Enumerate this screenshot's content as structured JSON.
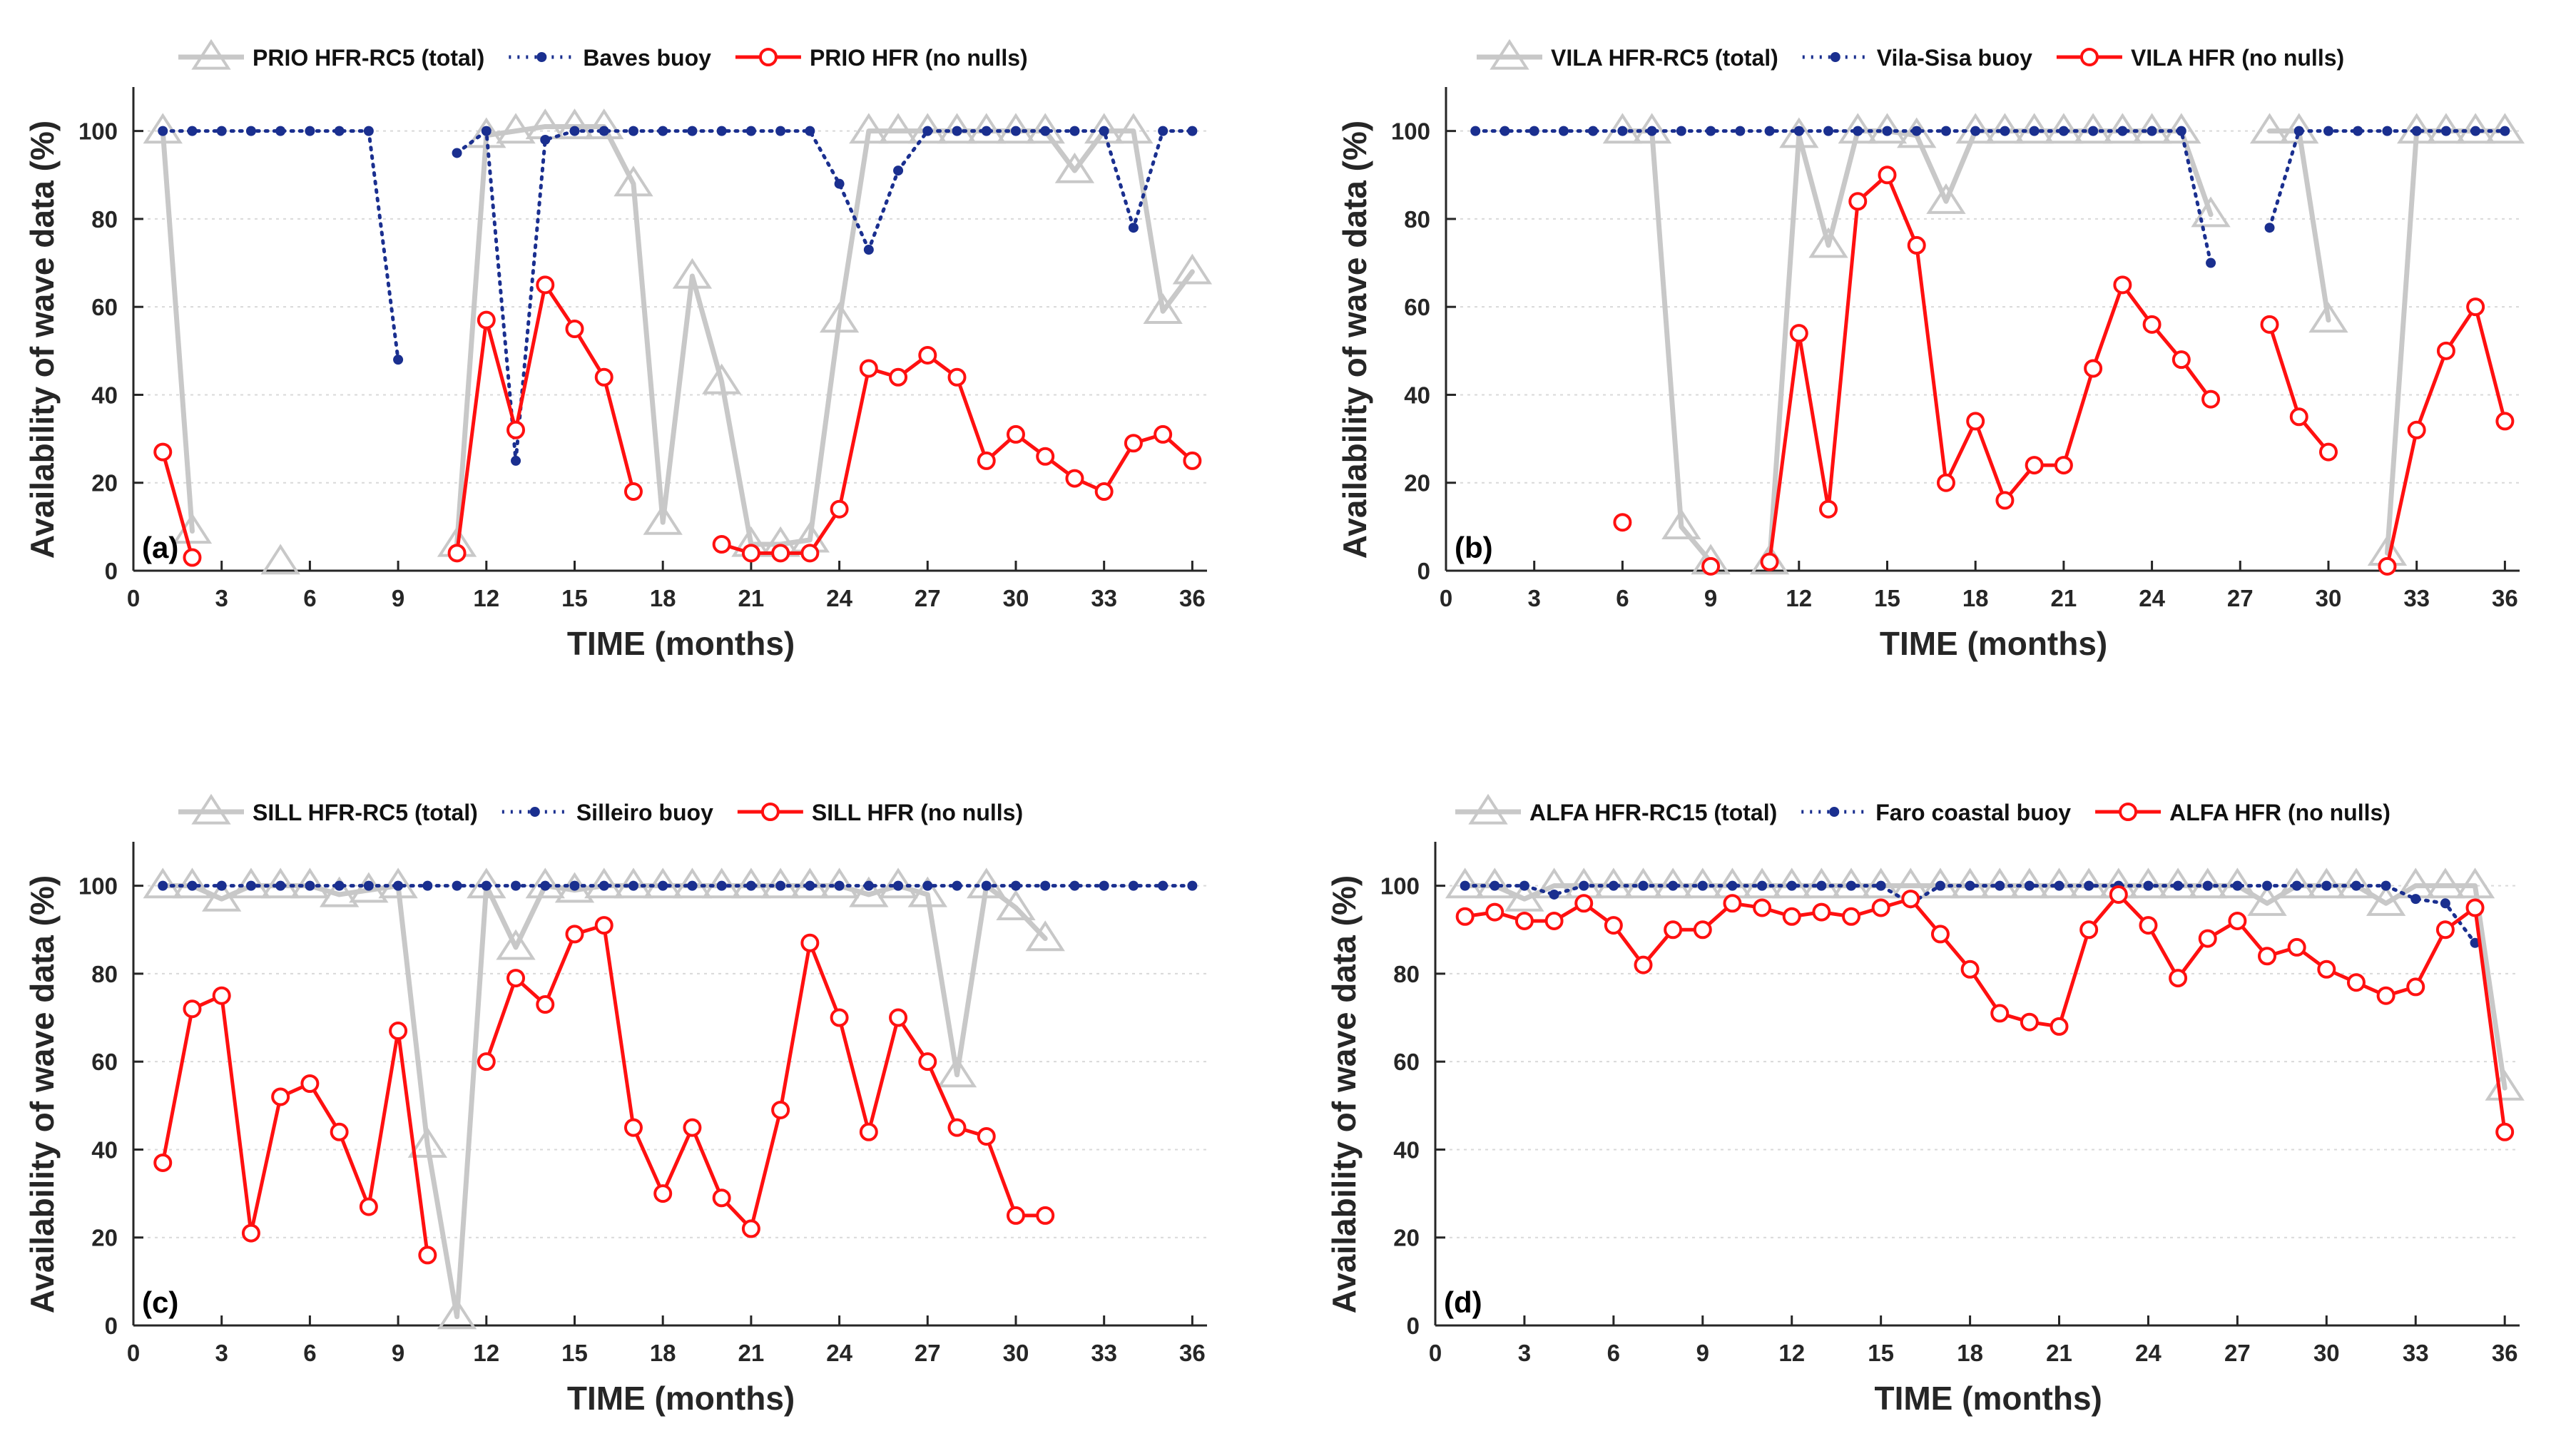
{
  "colors": {
    "hfr_total": "#c8c8c8",
    "buoy": "#1a2f8f",
    "hfr_nonull": "#ff1010",
    "grid": "#d9d9d9",
    "axis": "#262626"
  },
  "chart_data": [
    {
      "type": "line",
      "panel_tag": "(a)",
      "xlabel": "TIME (months)",
      "ylabel": "Availability of wave data (%)",
      "xlim": [
        0,
        36.5
      ],
      "ylim": [
        0,
        110
      ],
      "xticks": [
        0,
        3,
        6,
        9,
        12,
        15,
        18,
        21,
        24,
        27,
        30,
        33,
        36
      ],
      "yticks": [
        0,
        20,
        40,
        60,
        80,
        100
      ],
      "legend": [
        "PRIO HFR-RC5 (total)",
        "Baves buoy",
        "PRIO HFR (no nulls)"
      ],
      "series": [
        {
          "name": "PRIO HFR-RC5 (total)",
          "style": "total",
          "x": [
            1,
            2,
            3,
            4,
            5,
            6,
            7,
            8,
            9,
            10,
            11,
            12,
            13,
            14,
            15,
            16,
            17,
            18,
            19,
            20,
            21,
            22,
            23,
            24,
            25,
            26,
            27,
            28,
            29,
            30,
            31,
            32,
            33,
            34,
            35,
            36
          ],
          "y": [
            100,
            9,
            null,
            null,
            2,
            null,
            null,
            null,
            null,
            null,
            6,
            99,
            100,
            101,
            101,
            101,
            88,
            11,
            67,
            43,
            6,
            6,
            7,
            57,
            100,
            100,
            100,
            100,
            100,
            100,
            100,
            91,
            100,
            100,
            59,
            68
          ]
        },
        {
          "name": "Baves buoy",
          "style": "buoy",
          "x": [
            1,
            2,
            3,
            4,
            5,
            6,
            7,
            8,
            9,
            10,
            11,
            12,
            13,
            14,
            15,
            16,
            17,
            18,
            19,
            20,
            21,
            22,
            23,
            24,
            25,
            26,
            27,
            28,
            29,
            30,
            31,
            32,
            33,
            34,
            35,
            36
          ],
          "y": [
            100,
            100,
            100,
            100,
            100,
            100,
            100,
            100,
            48,
            null,
            95,
            100,
            25,
            98,
            100,
            100,
            100,
            100,
            100,
            100,
            100,
            100,
            100,
            88,
            73,
            91,
            100,
            100,
            100,
            100,
            100,
            100,
            100,
            78,
            100,
            100
          ]
        },
        {
          "name": "PRIO HFR (no nulls)",
          "style": "nonull",
          "x": [
            1,
            2,
            3,
            4,
            5,
            6,
            7,
            8,
            9,
            10,
            11,
            12,
            13,
            14,
            15,
            16,
            17,
            18,
            19,
            20,
            21,
            22,
            23,
            24,
            25,
            26,
            27,
            28,
            29,
            30,
            31,
            32,
            33,
            34,
            35,
            36
          ],
          "y": [
            27,
            3,
            null,
            null,
            null,
            null,
            null,
            null,
            null,
            null,
            4,
            57,
            32,
            65,
            55,
            44,
            18,
            null,
            null,
            6,
            4,
            4,
            4,
            14,
            46,
            44,
            49,
            44,
            25,
            31,
            26,
            21,
            18,
            29,
            31,
            25
          ]
        }
      ]
    },
    {
      "type": "line",
      "panel_tag": "(b)",
      "xlabel": "TIME (months)",
      "ylabel": "Availability of wave data (%)",
      "xlim": [
        0,
        36.5
      ],
      "ylim": [
        0,
        110
      ],
      "xticks": [
        0,
        3,
        6,
        9,
        12,
        15,
        18,
        21,
        24,
        27,
        30,
        33,
        36
      ],
      "yticks": [
        0,
        20,
        40,
        60,
        80,
        100
      ],
      "legend": [
        "VILA HFR-RC5 (total)",
        "Vila-Sisa buoy",
        "VILA HFR (no nulls)"
      ],
      "series": [
        {
          "name": "VILA HFR-RC5 (total)",
          "style": "total",
          "x": [
            1,
            2,
            3,
            4,
            5,
            6,
            7,
            8,
            9,
            10,
            11,
            12,
            13,
            14,
            15,
            16,
            17,
            18,
            19,
            20,
            21,
            22,
            23,
            24,
            25,
            26,
            27,
            28,
            29,
            30,
            31,
            32,
            33,
            34,
            35,
            36
          ],
          "y": [
            null,
            null,
            null,
            null,
            null,
            100,
            100,
            10,
            2,
            null,
            2,
            99,
            74,
            100,
            100,
            99,
            84,
            100,
            100,
            100,
            100,
            100,
            100,
            100,
            100,
            81,
            null,
            100,
            100,
            57,
            null,
            4,
            100,
            100,
            100,
            100
          ]
        },
        {
          "name": "Vila-Sisa buoy",
          "style": "buoy",
          "x": [
            1,
            2,
            3,
            4,
            5,
            6,
            7,
            8,
            9,
            10,
            11,
            12,
            13,
            14,
            15,
            16,
            17,
            18,
            19,
            20,
            21,
            22,
            23,
            24,
            25,
            26,
            27,
            28,
            29,
            30,
            31,
            32,
            33,
            34,
            35,
            36
          ],
          "y": [
            100,
            100,
            100,
            100,
            100,
            100,
            100,
            100,
            100,
            100,
            100,
            100,
            100,
            100,
            100,
            100,
            100,
            100,
            100,
            100,
            100,
            100,
            100,
            100,
            100,
            70,
            null,
            78,
            100,
            100,
            100,
            100,
            100,
            100,
            100,
            100
          ]
        },
        {
          "name": "VILA HFR (no nulls)",
          "style": "nonull",
          "x": [
            1,
            2,
            3,
            4,
            5,
            6,
            7,
            8,
            9,
            10,
            11,
            12,
            13,
            14,
            15,
            16,
            17,
            18,
            19,
            20,
            21,
            22,
            23,
            24,
            25,
            26,
            27,
            28,
            29,
            30,
            31,
            32,
            33,
            34,
            35,
            36
          ],
          "y": [
            null,
            null,
            null,
            null,
            null,
            11,
            null,
            null,
            1,
            null,
            2,
            54,
            14,
            84,
            90,
            74,
            20,
            34,
            16,
            24,
            24,
            46,
            65,
            56,
            48,
            39,
            null,
            56,
            35,
            27,
            null,
            1,
            32,
            50,
            60,
            34
          ]
        }
      ]
    },
    {
      "type": "line",
      "panel_tag": "(c)",
      "xlabel": "TIME (months)",
      "ylabel": "Availability of wave data (%)",
      "xlim": [
        0,
        36.5
      ],
      "ylim": [
        0,
        110
      ],
      "xticks": [
        0,
        3,
        6,
        9,
        12,
        15,
        18,
        21,
        24,
        27,
        30,
        33,
        36
      ],
      "yticks": [
        0,
        20,
        40,
        60,
        80,
        100
      ],
      "legend": [
        "SILL HFR-RC5 (total)",
        "Silleiro buoy",
        "SILL HFR (no nulls)"
      ],
      "series": [
        {
          "name": "SILL HFR-RC5 (total)",
          "style": "total",
          "x": [
            1,
            2,
            3,
            4,
            5,
            6,
            7,
            8,
            9,
            10,
            11,
            12,
            13,
            14,
            15,
            16,
            17,
            18,
            19,
            20,
            21,
            22,
            23,
            24,
            25,
            26,
            27,
            28,
            29,
            30,
            31,
            32,
            33,
            34,
            35,
            36
          ],
          "y": [
            100,
            100,
            97,
            100,
            100,
            100,
            98,
            99,
            100,
            41,
            2,
            100,
            86,
            100,
            99,
            100,
            100,
            100,
            100,
            100,
            100,
            100,
            100,
            100,
            98,
            100,
            98,
            57,
            100,
            95,
            88,
            null,
            null,
            null,
            null,
            null
          ]
        },
        {
          "name": "Silleiro buoy",
          "style": "buoy",
          "x": [
            1,
            2,
            3,
            4,
            5,
            6,
            7,
            8,
            9,
            10,
            11,
            12,
            13,
            14,
            15,
            16,
            17,
            18,
            19,
            20,
            21,
            22,
            23,
            24,
            25,
            26,
            27,
            28,
            29,
            30,
            31,
            32,
            33,
            34,
            35,
            36
          ],
          "y": [
            100,
            100,
            100,
            100,
            100,
            100,
            100,
            100,
            100,
            100,
            100,
            100,
            100,
            100,
            100,
            100,
            100,
            100,
            100,
            100,
            100,
            100,
            100,
            100,
            100,
            100,
            100,
            100,
            100,
            100,
            100,
            100,
            100,
            100,
            100,
            100
          ]
        },
        {
          "name": "SILL HFR (no nulls)",
          "style": "nonull",
          "x": [
            1,
            2,
            3,
            4,
            5,
            6,
            7,
            8,
            9,
            10,
            11,
            12,
            13,
            14,
            15,
            16,
            17,
            18,
            19,
            20,
            21,
            22,
            23,
            24,
            25,
            26,
            27,
            28,
            29,
            30,
            31,
            32,
            33,
            34,
            35,
            36
          ],
          "y": [
            37,
            72,
            75,
            21,
            52,
            55,
            44,
            27,
            67,
            16,
            null,
            60,
            79,
            73,
            89,
            91,
            45,
            30,
            45,
            29,
            22,
            49,
            87,
            70,
            44,
            70,
            60,
            45,
            43,
            25,
            25,
            null,
            null,
            null,
            null,
            null
          ]
        }
      ]
    },
    {
      "type": "line",
      "panel_tag": "(d)",
      "xlabel": "TIME (months)",
      "ylabel": "Availability of wave data (%)",
      "xlim": [
        0,
        36.5
      ],
      "ylim": [
        0,
        110
      ],
      "xticks": [
        0,
        3,
        6,
        9,
        12,
        15,
        18,
        21,
        24,
        27,
        30,
        33,
        36
      ],
      "yticks": [
        0,
        20,
        40,
        60,
        80,
        100
      ],
      "legend": [
        "ALFA HFR-RC15 (total)",
        "Faro coastal buoy",
        "ALFA HFR (no nulls)"
      ],
      "series": [
        {
          "name": "ALFA HFR-RC15 (total)",
          "style": "total",
          "x": [
            1,
            2,
            3,
            4,
            5,
            6,
            7,
            8,
            9,
            10,
            11,
            12,
            13,
            14,
            15,
            16,
            17,
            18,
            19,
            20,
            21,
            22,
            23,
            24,
            25,
            26,
            27,
            28,
            29,
            30,
            31,
            32,
            33,
            34,
            35,
            36
          ],
          "y": [
            100,
            100,
            97,
            100,
            100,
            100,
            100,
            100,
            100,
            100,
            100,
            100,
            100,
            100,
            100,
            100,
            100,
            100,
            100,
            100,
            100,
            100,
            100,
            100,
            100,
            100,
            100,
            96,
            100,
            100,
            100,
            96,
            100,
            100,
            100,
            54
          ]
        },
        {
          "name": "Faro coastal buoy",
          "style": "buoy",
          "x": [
            1,
            2,
            3,
            4,
            5,
            6,
            7,
            8,
            9,
            10,
            11,
            12,
            13,
            14,
            15,
            16,
            17,
            18,
            19,
            20,
            21,
            22,
            23,
            24,
            25,
            26,
            27,
            28,
            29,
            30,
            31,
            32,
            33,
            34,
            35,
            36
          ],
          "y": [
            100,
            100,
            100,
            98,
            100,
            100,
            100,
            100,
            100,
            100,
            100,
            100,
            100,
            100,
            100,
            96,
            100,
            100,
            100,
            100,
            100,
            100,
            100,
            100,
            100,
            100,
            100,
            100,
            100,
            100,
            100,
            100,
            97,
            96,
            87,
            null
          ]
        },
        {
          "name": "ALFA HFR (no nulls)",
          "style": "nonull",
          "x": [
            1,
            2,
            3,
            4,
            5,
            6,
            7,
            8,
            9,
            10,
            11,
            12,
            13,
            14,
            15,
            16,
            17,
            18,
            19,
            20,
            21,
            22,
            23,
            24,
            25,
            26,
            27,
            28,
            29,
            30,
            31,
            32,
            33,
            34,
            35,
            36
          ],
          "y": [
            93,
            94,
            92,
            92,
            96,
            91,
            82,
            90,
            90,
            96,
            95,
            93,
            94,
            93,
            95,
            97,
            89,
            81,
            71,
            69,
            68,
            90,
            98,
            91,
            79,
            88,
            92,
            84,
            86,
            81,
            78,
            75,
            77,
            90,
            95,
            44
          ]
        }
      ]
    }
  ]
}
